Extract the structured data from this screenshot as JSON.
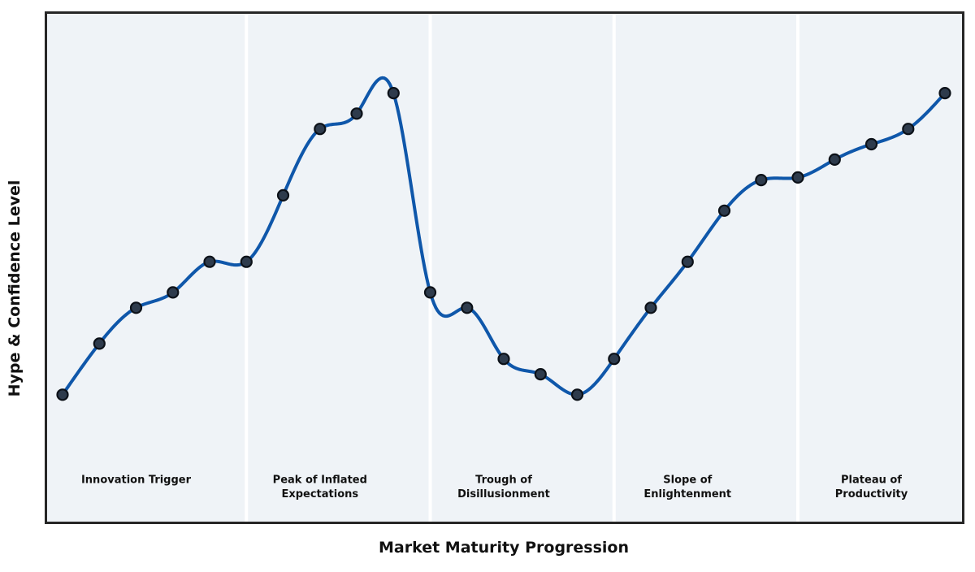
{
  "chart_data": {
    "type": "line",
    "title": "",
    "xlabel": "Market Maturity Progression",
    "ylabel": "Hype & Confidence Level",
    "x": [
      0,
      1,
      2,
      3,
      4,
      5,
      6,
      7,
      8,
      9,
      10,
      11,
      12,
      13,
      14,
      15,
      16,
      17,
      18,
      19,
      20,
      21,
      22,
      23,
      24
    ],
    "series": [
      {
        "name": "Hype & Confidence Level",
        "values": [
          25,
          35,
          42,
          45,
          51,
          51,
          64,
          77,
          80,
          84,
          45,
          42,
          32,
          29,
          25,
          32,
          42,
          51,
          61,
          67,
          67.5,
          71,
          74,
          77,
          84
        ]
      }
    ],
    "ylim": [
      0,
      100
    ],
    "xlim": [
      -0.45,
      24.6
    ],
    "grid": false,
    "legend": "none",
    "smoothing": "natural-cubic-spline",
    "marker": "circle",
    "phase_separators_x": [
      5,
      10,
      15,
      20
    ],
    "phases": [
      {
        "lines": [
          "Innovation Trigger"
        ],
        "x_center": 2
      },
      {
        "lines": [
          "Peak of Inflated",
          "Expectations"
        ],
        "x_center": 7
      },
      {
        "lines": [
          "Trough of",
          "Disillusionment"
        ],
        "x_center": 12
      },
      {
        "lines": [
          "Slope of",
          "Enlightenment"
        ],
        "x_center": 17
      },
      {
        "lines": [
          "Plateau of",
          "Productivity"
        ],
        "x_center": 22
      }
    ]
  },
  "colors": {
    "line": "#0f57aa",
    "marker_fill": "#2e3b4c",
    "marker_edge": "#0c1118",
    "panel": "#eff3f7",
    "separator": "#ffffff",
    "plot_border": "#262626",
    "text": "#111111",
    "figure_background": "#ffffff"
  }
}
